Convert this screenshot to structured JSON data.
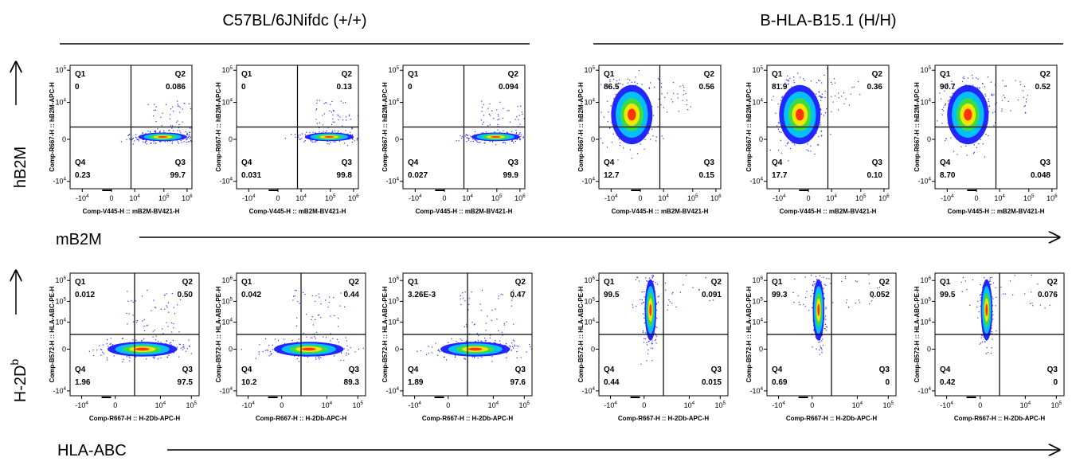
{
  "groups": [
    {
      "title": "C57BL/6JNifdc (+/+)"
    },
    {
      "title": "B-HLA-B15.1 (H/H)"
    }
  ],
  "quadrant_names": [
    "Q1",
    "Q2",
    "Q3",
    "Q4"
  ],
  "rows": [
    {
      "y_label": {
        "base": "hB2M"
      },
      "x_label": "mB2M",
      "plot_x_label": "Comp-V445-H :: mB2M-BV421-H",
      "plot_y_label": "Comp-R667-H :: hB2M-APC-H",
      "x_ticks": [
        {
          "base": "-10",
          "exp": "4"
        },
        {
          "base": "0"
        },
        {
          "base": "10",
          "exp": "4"
        },
        {
          "base": "10",
          "exp": "5"
        },
        {
          "base": "10",
          "exp": "6"
        }
      ],
      "y_ticks": [
        {
          "base": "10",
          "exp": "5"
        },
        {
          "base": "10",
          "exp": "4"
        },
        {
          "base": "0"
        },
        {
          "base": "-10",
          "exp": "4"
        }
      ],
      "panels": [
        {
          "q1": "0",
          "q2": "0.086",
          "q3": "99.7",
          "q4": "0.23"
        },
        {
          "q1": "0",
          "q2": "0.13",
          "q3": "99.8",
          "q4": "0.031"
        },
        {
          "q1": "0",
          "q2": "0.094",
          "q3": "99.9",
          "q4": "0.027"
        },
        {
          "q1": "86.5",
          "q2": "0.56",
          "q3": "0.15",
          "q4": "12.7"
        },
        {
          "q1": "81.9",
          "q2": "0.36",
          "q3": "0.10",
          "q4": "17.7"
        },
        {
          "q1": "90.7",
          "q2": "0.52",
          "q3": "0.048",
          "q4": "8.70"
        }
      ]
    },
    {
      "y_label": {
        "base": "H-2D",
        "exp": "b"
      },
      "x_label": "HLA-ABC",
      "plot_x_label": "Comp-R667-H :: H-2Db-APC-H",
      "plot_y_label": "Comp-B572-H :: HLA-ABC-PE-H",
      "x_ticks": [
        {
          "base": "-10",
          "exp": "4"
        },
        {
          "base": "0"
        },
        {
          "base": "10",
          "exp": "4"
        },
        {
          "base": "10",
          "exp": "5"
        }
      ],
      "y_ticks": [
        {
          "base": "10",
          "exp": "6"
        },
        {
          "base": "10",
          "exp": "5"
        },
        {
          "base": "10",
          "exp": "4"
        },
        {
          "base": "0"
        },
        {
          "base": "-10",
          "exp": "4"
        }
      ],
      "panels": [
        {
          "q1": "0.012",
          "q2": "0.50",
          "q3": "97.5",
          "q4": "1.96"
        },
        {
          "q1": "0.042",
          "q2": "0.44",
          "q3": "89.3",
          "q4": "10.2"
        },
        {
          "q1": "3.26E-3",
          "q2": "0.47",
          "q3": "97.6",
          "q4": "1.89"
        },
        {
          "q1": "99.5",
          "q2": "0.091",
          "q3": "0.015",
          "q4": "0.44"
        },
        {
          "q1": "99.3",
          "q2": "0.052",
          "q3": "0",
          "q4": "0.69"
        },
        {
          "q1": "99.5",
          "q2": "0.076",
          "q3": "0",
          "q4": "0.42"
        }
      ]
    }
  ]
}
